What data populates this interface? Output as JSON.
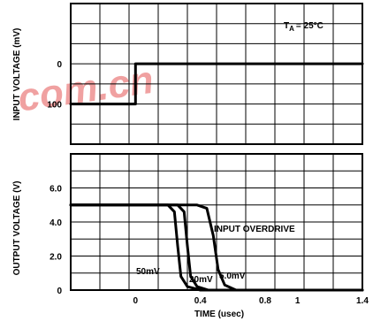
{
  "chart_data": [
    {
      "type": "line",
      "title": "",
      "xlabel": "",
      "ylabel": "INPUT VOLTAGE (mV)",
      "annotation": "TA = 25°C",
      "annotation_main": "T",
      "annotation_sub": "A",
      "annotation_rest": "= 25°C",
      "y_tick_labels": [
        "0",
        "100"
      ],
      "y_ticks": [
        0,
        100
      ],
      "ylim": [
        -150,
        200
      ],
      "y_direction": "down-is-positive",
      "xlim": [
        -0.4,
        1.4
      ],
      "grid": true,
      "series": [
        {
          "x": [
            -0.4,
            0.0,
            0.0,
            1.4
          ],
          "y": [
            100,
            100,
            0,
            0
          ]
        }
      ]
    },
    {
      "type": "line",
      "title": "",
      "xlabel": "TIME (usec)",
      "ylabel": "OUTPUT VOLTAGE (V)",
      "x_tick_labels": [
        "0",
        "0.4",
        "0.8",
        "1",
        "1.4"
      ],
      "x_ticks": [
        0,
        0.4,
        0.8,
        1.0,
        1.4
      ],
      "y_tick_labels": [
        "0",
        "2.0",
        "4.0",
        "6.0"
      ],
      "y_ticks": [
        0,
        2.0,
        4.0,
        6.0
      ],
      "xlim": [
        -0.4,
        1.4
      ],
      "ylim": [
        0,
        8
      ],
      "grid": true,
      "annotations": [
        "INPUT OVERDRIVE"
      ],
      "series": [
        {
          "name": "50mV",
          "x": [
            -0.4,
            0.2,
            0.24,
            0.26,
            0.28,
            0.32,
            0.4,
            1.4
          ],
          "y": [
            5.0,
            5.0,
            4.6,
            2.6,
            0.8,
            0.2,
            0.0,
            0.0
          ]
        },
        {
          "name": "20mV",
          "x": [
            -0.4,
            0.26,
            0.3,
            0.32,
            0.34,
            0.38,
            0.45,
            1.4
          ],
          "y": [
            5.0,
            5.0,
            4.6,
            2.6,
            0.8,
            0.2,
            0.0,
            0.0
          ]
        },
        {
          "name": "5.0mV",
          "x": [
            -0.4,
            0.38,
            0.44,
            0.48,
            0.51,
            0.55,
            0.62,
            1.4
          ],
          "y": [
            5.0,
            5.0,
            4.8,
            3.2,
            1.2,
            0.3,
            0.0,
            0.0
          ]
        }
      ]
    }
  ],
  "watermark": "com.cn"
}
